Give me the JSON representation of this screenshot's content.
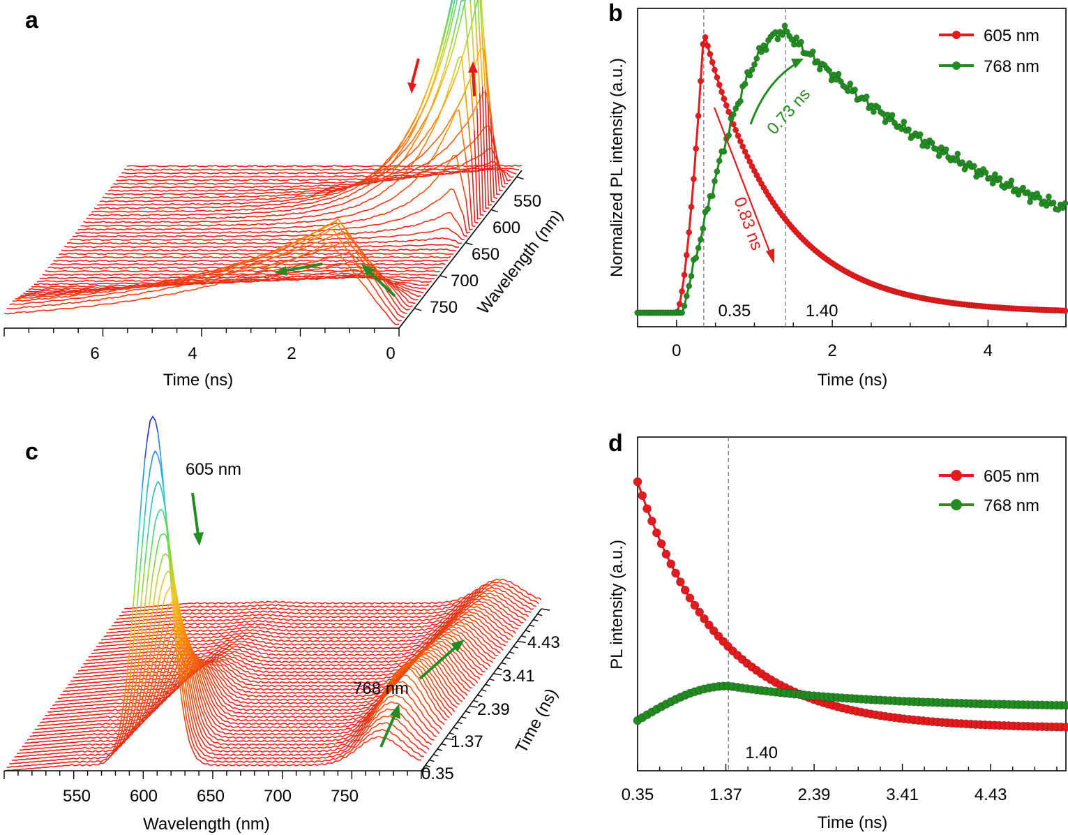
{
  "colors": {
    "red": "#e41a1c",
    "green": "#228b22",
    "dark_green": "#1e7a1e",
    "grid": "#777777"
  },
  "chart_data": [
    {
      "panel": "a",
      "type": "surface-3d-waterfall",
      "xlabel": "Time (ns)",
      "zlabel": "Wavelength (nm)",
      "x_ticks": [
        "6",
        "4",
        "2",
        "0"
      ],
      "z_ticks": [
        "550",
        "600",
        "650",
        "700",
        "750"
      ],
      "peaks_nm": [
        605,
        768
      ],
      "annotations": [
        "red arrows: 605 nm peak rises then decays",
        "green arrows: 768 nm band grows"
      ]
    },
    {
      "panel": "b",
      "type": "line",
      "xlabel": "Time (ns)",
      "ylabel": "Normalized PL intensity (a.u.)",
      "xlim": [
        -0.5,
        5.0
      ],
      "x_ticks": [
        "0",
        "2",
        "4"
      ],
      "ylim": [
        0,
        1.05
      ],
      "series": [
        {
          "name": "605 nm",
          "color": "#e41a1c",
          "rise_start": 0.0,
          "peak_time": 0.35,
          "decay_tau": 0.83
        },
        {
          "name": "768 nm",
          "color": "#228b22",
          "rise_start": 0.1,
          "peak_time": 1.4,
          "decay_tau": 3.5
        }
      ],
      "vlines": [
        {
          "x": 0.35,
          "label": "0.35"
        },
        {
          "x": 1.4,
          "label": "1.40"
        }
      ],
      "annotations": [
        {
          "text": "0.83 ns",
          "color": "#e41a1c"
        },
        {
          "text": "0.73 ns",
          "color": "#228b22"
        }
      ]
    },
    {
      "panel": "c",
      "type": "surface-3d-waterfall",
      "xlabel": "Wavelength (nm)",
      "zlabel": "Time (ns)",
      "x_ticks": [
        "550",
        "600",
        "650",
        "700",
        "750"
      ],
      "z_ticks": [
        "0.35",
        "1.37",
        "2.39",
        "3.41",
        "4.43"
      ],
      "annotations": [
        {
          "text": "605 nm"
        },
        {
          "text": "768 nm"
        }
      ]
    },
    {
      "panel": "d",
      "type": "line",
      "xlabel": "Time (ns)",
      "ylabel": "PL intensity (a.u.)",
      "xlim": [
        0.35,
        5.3
      ],
      "x_ticks": [
        "0.35",
        "1.37",
        "2.39",
        "3.41",
        "4.43"
      ],
      "series": [
        {
          "name": "605 nm",
          "color": "#e41a1c",
          "start": 1.0,
          "decay_tau": 0.9,
          "floor": 0.07
        },
        {
          "name": "768 nm",
          "color": "#228b22",
          "start": 0.1,
          "peak": 0.23,
          "peak_time": 1.4,
          "end": 0.15
        }
      ],
      "vlines": [
        {
          "x": 1.4,
          "label": "1.40"
        }
      ]
    }
  ]
}
